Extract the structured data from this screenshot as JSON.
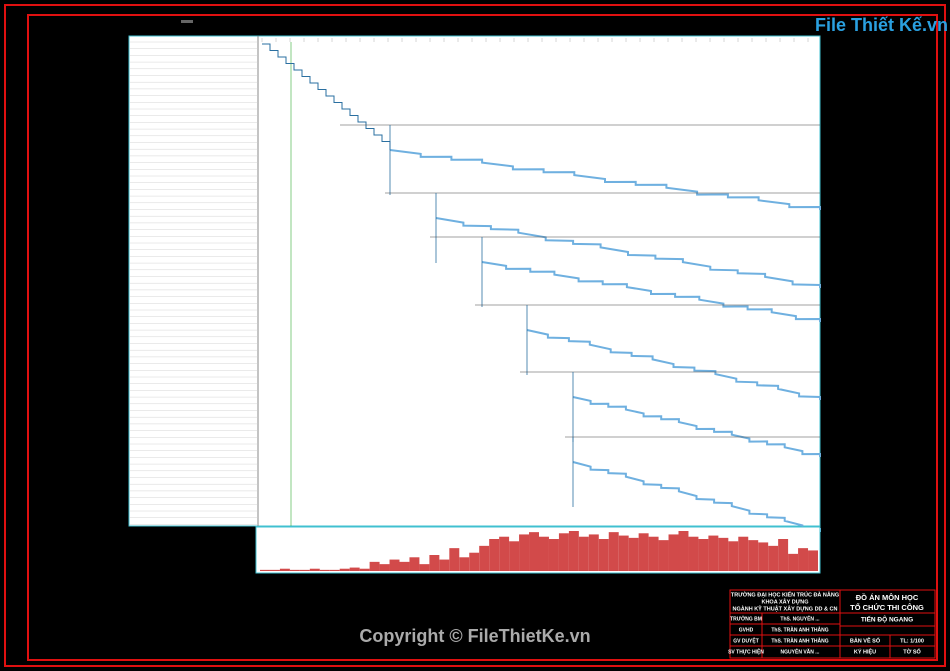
{
  "header": {
    "logo": "File Thiết Kế.vn",
    "copyright": "Copyright © FileThietKe.vn"
  },
  "histogram": {
    "values": [
      1,
      1,
      2,
      1,
      1,
      2,
      1,
      1,
      2,
      3,
      2,
      8,
      6,
      10,
      8,
      12,
      6,
      14,
      10,
      20,
      12,
      16,
      22,
      28,
      30,
      26,
      32,
      34,
      30,
      28,
      33,
      35,
      30,
      32,
      28,
      34,
      31,
      29,
      33,
      30,
      27,
      32,
      35,
      30,
      28,
      31,
      29,
      26,
      30,
      27,
      25,
      22,
      28,
      15,
      20,
      18
    ]
  },
  "title_block": {
    "school": "TRƯỜNG ĐẠI HỌC KIẾN TRÚC ĐÀ NẴNG",
    "faculty": "KHOA XÂY DỰNG",
    "major": "NGÀNH KỸ THUẬT XÂY DỰNG DD & CN",
    "project": "ĐỒ ÁN MÔN HỌC",
    "subject": "TỔ CHỨC THI CÔNG",
    "drawing": "TIẾN ĐỘ NGANG",
    "rows": [
      [
        "TRƯỞNG BM",
        "ThS. NGUYỄN ..."
      ],
      [
        "GVHD",
        "ThS. TRẦN ANH THẮNG"
      ],
      [
        "GV DUYỆT",
        "ThS. TRẦN ANH THẮNG"
      ],
      [
        "SV THỰC HIỆN",
        "NGUYỄN VĂN ..."
      ]
    ],
    "sheet_label": "BẢN VẼ SỐ",
    "scale": "TL: 1/100",
    "code_label": "KÝ HIỆU",
    "sheet_no": "TỜ SỐ"
  }
}
